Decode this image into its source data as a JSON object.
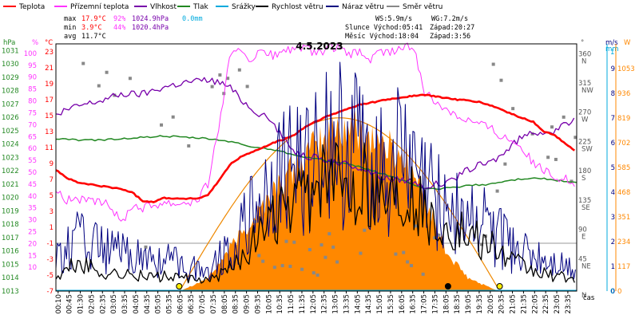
{
  "legend": {
    "items": [
      {
        "label": "Teplota",
        "color": "#ff0000"
      },
      {
        "label": "Přízemní teplota",
        "color": "#ff33ff"
      },
      {
        "label": "Vlhkost",
        "color": "#7700aa"
      },
      {
        "label": "Tlak",
        "color": "#228822"
      },
      {
        "label": "Srážky",
        "color": "#00aadd"
      },
      {
        "label": "Rychlost větru",
        "color": "#000000"
      },
      {
        "label": "Náraz větru",
        "color": "#000080"
      },
      {
        "label": "Směr větru",
        "color": "#888888"
      }
    ]
  },
  "stats": {
    "max": {
      "label": "max",
      "temp": "17.9°C",
      "hum": "92%",
      "press": "1024.9hPa",
      "rain": "0.0mm"
    },
    "min": {
      "label": "min",
      "temp": "3.9°C",
      "hum": "44%",
      "press": "1020.4hPa"
    },
    "avg": {
      "label": "avg",
      "temp": "11.7°C"
    }
  },
  "info": {
    "ws": "WS:5.9m/s",
    "wg": "WG:7.2m/s",
    "sun_rise": "Slunce Východ:05:41",
    "sun_set": "Západ:20:27",
    "moon_rise": "Měsíc  Východ:18:04",
    "moon_set": "Západ:3:56"
  },
  "title": "4.5.2023",
  "axes": {
    "hpa_unit": "hPa",
    "pct_unit": "%",
    "c_unit": "°C",
    "deg_unit": "°",
    "ms_unit": "m/s",
    "mm_unit": "mm",
    "w_unit": "W",
    "hpa_ticks": [
      1031,
      1030,
      1029,
      1028,
      1027,
      1026,
      1025,
      1024,
      1023,
      1022,
      1021,
      1020,
      1019,
      1018,
      1017,
      1016,
      1015,
      1014,
      1013
    ],
    "pct_ticks": [
      100,
      95,
      90,
      85,
      80,
      75,
      70,
      65,
      60,
      55,
      50,
      45,
      40,
      35,
      30,
      25,
      20,
      15,
      10,
      5,
      0
    ],
    "c_ticks": [
      23,
      21,
      19,
      17,
      15,
      13,
      11,
      9,
      7,
      5,
      3,
      1,
      -1,
      -3,
      -5,
      -7
    ],
    "dir_ticks": [
      {
        "deg": 360,
        "label": "N"
      },
      {
        "deg": 315,
        "label": "NW"
      },
      {
        "deg": 270,
        "label": "W"
      },
      {
        "deg": 225,
        "label": "SW"
      },
      {
        "deg": 180,
        "label": "S"
      },
      {
        "deg": 135,
        "label": "SE"
      },
      {
        "deg": 90,
        "label": "E"
      },
      {
        "deg": 45,
        "label": "NE"
      },
      {
        "deg": 0,
        "label": "N"
      }
    ],
    "ms_ticks": [
      9,
      8,
      7,
      6,
      5,
      4,
      3,
      2,
      1,
      0
    ],
    "mm_ticks": [
      1,
      0
    ],
    "w_ticks": [
      1053,
      936,
      819,
      702,
      585,
      468,
      351,
      234,
      117,
      0
    ],
    "time_label": "čas",
    "time_ticks": [
      "00:10",
      "00:45",
      "01:30",
      "02:05",
      "02:35",
      "03:05",
      "03:35",
      "04:05",
      "04:35",
      "05:05",
      "05:35",
      "06:05",
      "06:35",
      "07:05",
      "07:35",
      "08:05",
      "08:35",
      "09:05",
      "09:35",
      "10:05",
      "10:35",
      "11:05",
      "11:35",
      "12:05",
      "12:35",
      "13:05",
      "13:35",
      "14:05",
      "14:35",
      "15:05",
      "15:35",
      "16:05",
      "16:35",
      "17:05",
      "17:35",
      "18:05",
      "18:35",
      "19:05",
      "19:35",
      "20:05",
      "20:35",
      "21:05",
      "21:35",
      "22:05",
      "22:35",
      "23:05",
      "23:35"
    ]
  },
  "chart_data": {
    "type": "line",
    "title": "4.5.2023",
    "x_unit": "hours",
    "series": [
      {
        "name": "Teplota",
        "unit": "°C",
        "color": "#ff0000",
        "x": [
          0,
          0.5,
          1,
          1.5,
          2,
          2.5,
          3,
          3.5,
          4,
          4.5,
          5,
          5.5,
          6,
          6.5,
          7,
          7.5,
          8,
          8.5,
          9,
          9.5,
          10,
          10.5,
          11,
          11.5,
          12,
          12.5,
          13,
          13.5,
          14,
          14.5,
          15,
          15.5,
          16,
          16.5,
          17,
          17.5,
          18,
          18.5,
          19,
          19.5,
          20,
          20.5,
          21,
          21.5,
          22,
          22.5,
          23,
          23.5,
          24
        ],
        "y": [
          8.2,
          7.2,
          6.6,
          6.4,
          6.2,
          6.0,
          5.8,
          5.4,
          4.3,
          4.2,
          4.7,
          4.6,
          4.6,
          4.6,
          5.0,
          6.8,
          8.8,
          9.8,
          10.4,
          10.9,
          11.6,
          12.0,
          12.6,
          13.6,
          14.3,
          14.9,
          15.4,
          15.9,
          16.4,
          16.6,
          16.9,
          17.1,
          17.3,
          17.5,
          17.6,
          17.4,
          17.2,
          17.0,
          16.9,
          16.7,
          16.3,
          15.8,
          15.2,
          14.7,
          14.2,
          13.0,
          12.5,
          11.5,
          10.4
        ]
      },
      {
        "name": "Přízemní teplota",
        "unit": "°C",
        "color": "#ff33ff",
        "x": [
          0,
          0.5,
          1,
          1.5,
          2,
          2.5,
          3,
          3.5,
          4,
          4.5,
          5,
          5.5,
          6,
          6.5,
          7,
          7.5,
          8,
          8.5,
          9,
          9.5,
          10,
          10.5,
          11,
          11.5,
          12,
          12.5,
          13,
          13.5,
          14,
          14.5,
          15,
          15.5,
          16,
          16.5,
          17,
          17.5,
          18,
          18.5,
          19,
          19.5,
          20,
          20.5,
          21,
          21.5,
          22,
          22.5,
          23,
          23.5,
          24
        ],
        "y": [
          6.0,
          4.4,
          4.6,
          4.2,
          4.0,
          3.8,
          1.5,
          3.8,
          3.5,
          3.8,
          4.2,
          4.0,
          4.2,
          4.3,
          6.5,
          13.5,
          22.0,
          23.5,
          22.0,
          23.0,
          22.5,
          23.0,
          23.5,
          23.5,
          22.5,
          23.5,
          23.5,
          22.5,
          23.0,
          22.0,
          23.0,
          23.0,
          23.5,
          23.5,
          18.0,
          16.5,
          16.0,
          15.0,
          14.5,
          14.0,
          13.5,
          12.5,
          12.0,
          11.0,
          9.0,
          8.0,
          7.5,
          7.0,
          6.5
        ]
      },
      {
        "name": "Vlhkost",
        "unit": "%",
        "color": "#7700aa",
        "x": [
          0,
          1,
          2,
          3,
          4,
          5,
          6,
          7,
          7.5,
          8,
          8.5,
          9,
          9.5,
          10,
          10.5,
          11,
          11.5,
          12,
          12.5,
          13,
          13.5,
          14,
          14.5,
          15,
          15.5,
          16,
          16.5,
          17,
          17.5,
          18,
          18.5,
          19,
          19.5,
          20,
          20.5,
          21,
          21.5,
          22,
          22.5,
          23,
          23.5,
          24
        ],
        "y": [
          74,
          78,
          80,
          83,
          83,
          86,
          88,
          89,
          88,
          86,
          81,
          77,
          74,
          71,
          64,
          59,
          57,
          56,
          55,
          54,
          53,
          52,
          50,
          48,
          47,
          47,
          46,
          44,
          45,
          45,
          48,
          51,
          53,
          54,
          57,
          61,
          65,
          67,
          67,
          67,
          70,
          73
        ]
      },
      {
        "name": "Tlak",
        "unit": "hPa",
        "color": "#228822",
        "x": [
          0,
          1,
          2,
          3,
          4,
          5,
          6,
          7,
          8,
          9,
          10,
          11,
          12,
          13,
          14,
          15,
          16,
          17,
          18,
          19,
          20,
          21,
          22,
          23,
          24
        ],
        "y": [
          1024.4,
          1024.3,
          1024.3,
          1024.4,
          1024.5,
          1024.6,
          1024.5,
          1024.4,
          1024.2,
          1023.8,
          1023.6,
          1023.2,
          1022.9,
          1022.6,
          1022.3,
          1021.8,
          1021.3,
          1020.6,
          1020.7,
          1020.9,
          1021.0,
          1021.3,
          1021.5,
          1021.3,
          1021.1
        ]
      },
      {
        "name": "Srážky",
        "unit": "mm",
        "color": "#00aadd",
        "x": [
          0,
          24
        ],
        "y": [
          0,
          0
        ]
      },
      {
        "name": "Rychlost větru",
        "unit": "m/s",
        "color": "#000000",
        "x": [
          0,
          1,
          2,
          3,
          4,
          5,
          6,
          7,
          8,
          9,
          10,
          11,
          12,
          13,
          14,
          15,
          16,
          17,
          18,
          19,
          20,
          21,
          22,
          23,
          24
        ],
        "y": [
          0.5,
          1.2,
          0.8,
          0.7,
          0.6,
          0.6,
          0.5,
          0.4,
          0.9,
          1.8,
          2.8,
          3.5,
          4.2,
          4.5,
          4.4,
          4.0,
          3.9,
          3.2,
          2.6,
          2.2,
          1.8,
          1.2,
          0.8,
          0.6,
          0.5
        ]
      },
      {
        "name": "Náraz větru",
        "unit": "m/s",
        "color": "#000080",
        "x": [
          0,
          1,
          2,
          3,
          4,
          5,
          6,
          7,
          8,
          9,
          10,
          11,
          12,
          13,
          14,
          15,
          16,
          17,
          18,
          19,
          20,
          21,
          22,
          23,
          24
        ],
        "y": [
          1.5,
          2.5,
          2.0,
          1.8,
          1.5,
          1.5,
          1.2,
          1.0,
          2.0,
          3.5,
          5.0,
          6.0,
          6.5,
          7.0,
          6.8,
          6.0,
          6.2,
          5.0,
          4.2,
          3.5,
          3.0,
          2.0,
          1.6,
          1.3,
          1.0
        ]
      },
      {
        "name": "Sluneční záření",
        "unit": "W",
        "color": "#ff8800",
        "x": [
          5.7,
          7,
          8,
          9,
          10,
          11,
          12,
          13,
          14,
          15,
          16,
          17,
          18,
          19,
          20.4
        ],
        "y": [
          0,
          60,
          200,
          330,
          470,
          580,
          680,
          770,
          760,
          700,
          640,
          450,
          180,
          60,
          0
        ]
      }
    ],
    "ylim": {
      "celsius": [
        -7,
        24
      ],
      "percent": [
        0,
        104
      ],
      "hPa": [
        1013,
        1031.5
      ],
      "deg": [
        0,
        380
      ],
      "ms": [
        0,
        10
      ],
      "W": [
        0,
        1170
      ]
    },
    "xlim": [
      0,
      24
    ],
    "grid": false,
    "legend_position": "top"
  }
}
